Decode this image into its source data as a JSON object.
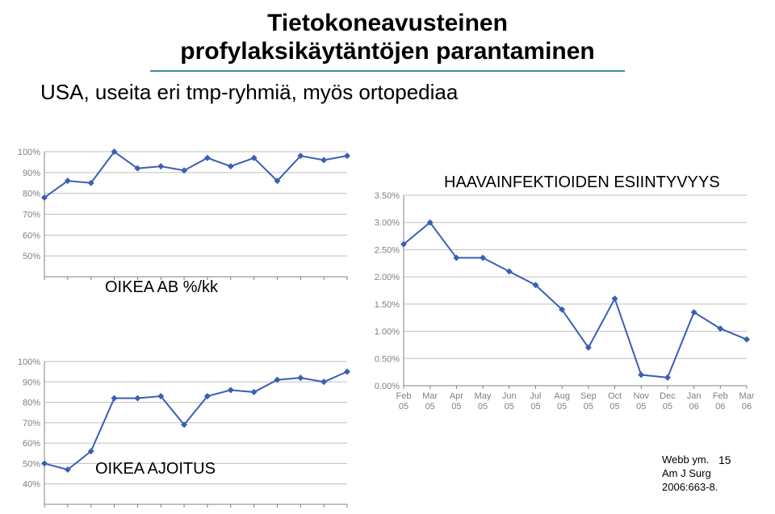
{
  "title": {
    "line1": "Tietokoneavusteinen",
    "line2": "profylaksikäytäntöjen parantaminen"
  },
  "subtitle": "USA, useita eri tmp-ryhmiä, myös ortopediaa",
  "labels": {
    "ab": "OIKEA AB %/kk",
    "timing": "OIKEA AJOITUS",
    "infection": "HAAVAINFEKTIOIDEN ESIINTYVYYS"
  },
  "page_number": "15",
  "citation": {
    "line1": "Webb ym.",
    "line2": "Am J Surg",
    "line3": "2006:663-8."
  },
  "chart_top": {
    "type": "line",
    "x": [
      0,
      1,
      2,
      3,
      4,
      5,
      6,
      7,
      8,
      9,
      10,
      11,
      12,
      13
    ],
    "ylim": [
      40,
      100
    ],
    "yticks": [
      50,
      60,
      70,
      80,
      90,
      100
    ],
    "ytick_labels": [
      "50%",
      "60%",
      "70%",
      "80%",
      "90%",
      "100%"
    ],
    "values": [
      78,
      86,
      85,
      100,
      92,
      93,
      91,
      97,
      93,
      97,
      86,
      98,
      96,
      98
    ],
    "line_color": "#3b5fb5",
    "marker_color": "#3b5fb5",
    "marker_size": 4,
    "line_width": 2,
    "grid_color": "#bfbfbf",
    "axis_color": "#808080",
    "text_color": "#808080",
    "fontsize": 11
  },
  "chart_mid": {
    "type": "line",
    "x": [
      0,
      1,
      2,
      3,
      4,
      5,
      6,
      7,
      8,
      9,
      10,
      11,
      12,
      13
    ],
    "ylim": [
      30,
      100
    ],
    "yticks": [
      40,
      50,
      60,
      70,
      80,
      90,
      100
    ],
    "ytick_labels": [
      "40%",
      "50%",
      "60%",
      "70%",
      "80%",
      "90%",
      "100%"
    ],
    "values": [
      50,
      47,
      56,
      82,
      82,
      83,
      69,
      83,
      86,
      85,
      91,
      92,
      90,
      95
    ],
    "line_color": "#3b5fb5",
    "marker_color": "#3b5fb5",
    "marker_size": 4,
    "line_width": 2,
    "grid_color": "#bfbfbf",
    "axis_color": "#808080",
    "text_color": "#808080",
    "fontsize": 11
  },
  "chart_right": {
    "type": "line",
    "x": [
      0,
      1,
      2,
      3,
      4,
      5,
      6,
      7,
      8,
      9,
      10,
      11,
      12,
      13
    ],
    "ylim": [
      0,
      3.5
    ],
    "yticks": [
      0,
      0.5,
      1.0,
      1.5,
      2.0,
      2.5,
      3.0,
      3.5
    ],
    "ytick_labels": [
      "0.00%",
      "0.50%",
      "1.00%",
      "1.50%",
      "2.00%",
      "2.50%",
      "3.00%",
      "3.50%"
    ],
    "xlabels": [
      "Feb\n05",
      "Mar\n05",
      "Apr\n05",
      "May\n05",
      "Jun\n05",
      "Jul\n05",
      "Aug\n05",
      "Sep\n05",
      "Oct\n05",
      "Nov\n05",
      "Dec\n05",
      "Jan\n06",
      "Feb\n06",
      "Mar\n06"
    ],
    "values": [
      2.6,
      3.0,
      2.35,
      2.35,
      2.1,
      1.85,
      1.4,
      0.7,
      1.6,
      0.2,
      0.15,
      1.35,
      1.05,
      0.85
    ],
    "line_color": "#3b5fb5",
    "marker_color": "#3b5fb5",
    "marker_size": 4,
    "line_width": 2,
    "grid_color": "#bfbfbf",
    "axis_color": "#808080",
    "text_color": "#808080",
    "fontsize": 11
  }
}
